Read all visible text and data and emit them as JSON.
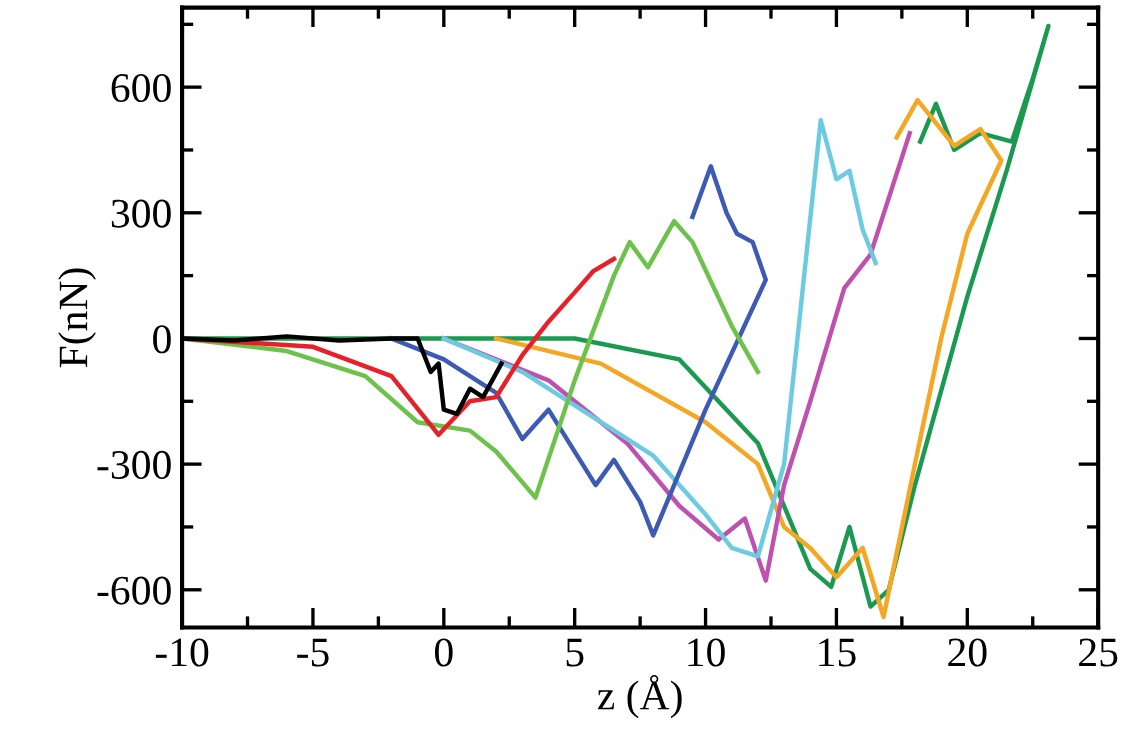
{
  "chart_data": {
    "type": "line",
    "xlabel": "z (Å)",
    "ylabel": "F(nN)",
    "xlim": [
      -10,
      25
    ],
    "ylim": [
      -690,
      790
    ],
    "xticks": [
      -10,
      -5,
      0,
      5,
      10,
      15,
      20,
      25
    ],
    "yticks": [
      -600,
      -300,
      0,
      300,
      600
    ],
    "grid": false,
    "legend": false,
    "line_style": "solid",
    "marker": "none",
    "series": [
      {
        "color": "#1a9a50",
        "x": [
          -10,
          -5,
          0,
          5,
          9,
          12,
          13,
          14,
          14.8,
          15.5,
          16.3,
          17,
          18,
          20,
          21.5,
          23.1,
          22.5,
          21.7,
          20.5,
          19.5,
          18.8,
          18.2
        ],
        "values": [
          0,
          0,
          0,
          0,
          -50,
          -250,
          -400,
          -550,
          -593,
          -450,
          -640,
          -600,
          -350,
          100,
          400,
          746,
          620,
          470,
          490,
          450,
          560,
          470
        ]
      },
      {
        "color": "#f5a623",
        "x": [
          2,
          6,
          10,
          12,
          13,
          14,
          15,
          16,
          16.8,
          18,
          19,
          20,
          21.3,
          20.5,
          19.5,
          18.1,
          17.3
        ],
        "values": [
          0,
          -60,
          -200,
          -300,
          -450,
          -500,
          -570,
          -500,
          -665,
          -300,
          0,
          250,
          425,
          500,
          460,
          569,
          480
        ]
      },
      {
        "color": "#c050b0",
        "x": [
          0,
          4,
          7,
          9,
          10.5,
          11.5,
          12.3,
          13,
          14,
          15.3,
          16.3,
          17.8
        ],
        "values": [
          0,
          -100,
          -250,
          -400,
          -480,
          -430,
          -578,
          -350,
          -150,
          120,
          200,
          490
        ]
      },
      {
        "color": "#6ccbe0",
        "x": [
          0,
          3,
          6,
          8,
          9,
          10,
          11,
          12,
          13,
          14.4,
          15,
          15.5,
          16,
          16.5
        ],
        "values": [
          0,
          -80,
          -200,
          -280,
          -350,
          -420,
          -500,
          -520,
          -300,
          521,
          380,
          400,
          260,
          180
        ]
      },
      {
        "color": "#3d5bb5",
        "x": [
          -2,
          0,
          2,
          3,
          4,
          5,
          5.8,
          6.5,
          7.5,
          8,
          10,
          12.3,
          11.8,
          11.2,
          10.8,
          10.2,
          9.5
        ],
        "values": [
          0,
          -50,
          -130,
          -240,
          -170,
          -270,
          -350,
          -290,
          -390,
          -470,
          -170,
          140,
          230,
          250,
          300,
          411,
          290
        ]
      },
      {
        "color": "#6cc24a",
        "x": [
          -10,
          -6,
          -3,
          -1,
          1,
          2,
          3.5,
          5,
          6.5,
          7.1,
          7.8,
          8.8,
          9.5,
          11,
          12
        ],
        "values": [
          0,
          -30,
          -90,
          -200,
          -220,
          -270,
          -380,
          -100,
          150,
          230,
          170,
          280,
          230,
          30,
          -80
        ]
      },
      {
        "color": "#e8202a",
        "x": [
          -10,
          -5,
          -2,
          -0.2,
          1,
          2,
          3,
          4,
          5,
          5.7,
          6.5
        ],
        "values": [
          0,
          -20,
          -90,
          -230,
          -150,
          -140,
          -40,
          40,
          110,
          160,
          190
        ]
      },
      {
        "color": "#000000",
        "x": [
          -10,
          -8,
          -6,
          -4,
          -2,
          -1,
          -0.5,
          -0.2,
          0,
          0.5,
          1,
          1.5,
          2.2
        ],
        "values": [
          0,
          -5,
          5,
          -5,
          0,
          0,
          -80,
          -60,
          -170,
          -180,
          -120,
          -140,
          -60
        ]
      }
    ]
  }
}
